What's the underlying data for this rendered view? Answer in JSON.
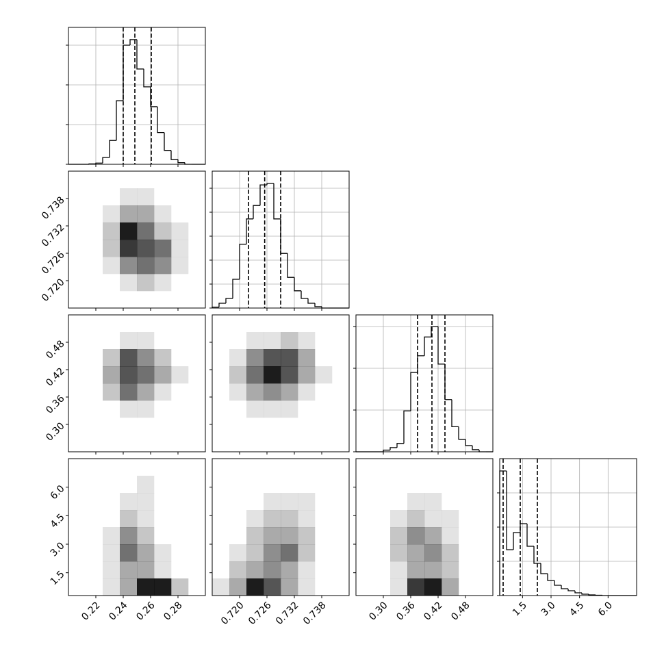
{
  "chart_data": {
    "type": "corner",
    "grid": true,
    "params": [
      {
        "xlim": [
          0.2,
          0.3
        ],
        "ticks": [
          0.22,
          0.24,
          0.26,
          0.28
        ]
      },
      {
        "xlim": [
          0.714,
          0.744
        ],
        "ticks": [
          {
            "value": 0.72,
            "label": "0.720"
          },
          0.726,
          0.732,
          0.738
        ]
      },
      {
        "xlim": [
          0.24,
          0.54
        ],
        "ticks": [
          {
            "value": 0.3,
            "label": "0.30"
          },
          0.36,
          0.42,
          0.48
        ]
      },
      {
        "xlim": [
          0.3,
          7.5
        ],
        "ticks": [
          1.5,
          {
            "value": 3,
            "label": "3.0"
          },
          4.5,
          {
            "value": 6,
            "label": "6.0"
          }
        ]
      }
    ],
    "histograms": [
      {
        "bins": [
          0.2,
          0.205,
          0.21,
          0.215,
          0.22,
          0.225,
          0.23,
          0.235,
          0.24,
          0.245,
          0.25,
          0.255,
          0.26,
          0.265,
          0.27,
          0.275,
          0.28,
          0.285,
          0.29,
          0.295,
          0.3
        ],
        "values": [
          0,
          0,
          0,
          10,
          30,
          170,
          600,
          1600,
          3000,
          3140,
          2400,
          1950,
          1450,
          800,
          350,
          120,
          40,
          0,
          0,
          0
        ],
        "ylim": [
          0,
          3448
        ],
        "yticks": [
          0,
          1000,
          2000,
          3000
        ],
        "quantiles": [
          0.24,
          0.2485,
          0.2605
        ]
      },
      {
        "bins": [
          0.714,
          0.7155,
          0.717,
          0.7185,
          0.72,
          0.7215,
          0.723,
          0.7245,
          0.726,
          0.7275,
          0.729,
          0.7305,
          0.732,
          0.7335,
          0.735,
          0.7365,
          0.738,
          0.7395,
          0.741,
          0.7425,
          0.744
        ],
        "values": [
          20,
          100,
          200,
          600,
          1330,
          1860,
          2140,
          2570,
          2600,
          1860,
          1140,
          640,
          360,
          200,
          100,
          30,
          0,
          0,
          0,
          0
        ],
        "ylim": [
          0,
          2857
        ],
        "yticks": [
          0,
          500,
          1000,
          1500,
          2000,
          2500
        ],
        "quantiles": [
          0.72195,
          0.7255,
          0.729
        ]
      },
      {
        "bins": [
          0.24,
          0.255,
          0.27,
          0.285,
          0.3,
          0.315,
          0.33,
          0.345,
          0.36,
          0.375,
          0.39,
          0.405,
          0.42,
          0.435,
          0.45,
          0.465,
          0.48,
          0.495,
          0.51,
          0.525,
          0.54
        ],
        "values": [
          0,
          0,
          0,
          0,
          40,
          100,
          200,
          980,
          1900,
          2300,
          2750,
          3000,
          2100,
          1250,
          600,
          300,
          150,
          50,
          0,
          0
        ],
        "ylim": [
          0,
          3279
        ],
        "yticks": [
          0,
          1000,
          2000,
          3000
        ],
        "quantiles": [
          0.375,
          0.4065,
          0.435
        ]
      },
      {
        "bins": [
          0.3,
          0.66,
          1.02,
          1.38,
          1.74,
          2.1,
          2.46,
          2.82,
          3.18,
          3.54,
          3.9,
          4.26,
          4.62,
          4.98,
          5.34,
          5.7,
          6.06,
          6.42,
          6.78,
          7.14,
          7.5
        ],
        "values": [
          1820,
          670,
          920,
          1050,
          720,
          470,
          320,
          220,
          150,
          100,
          70,
          40,
          20,
          10,
          5,
          0,
          0,
          0,
          0,
          0
        ],
        "ylim": [
          0,
          2000
        ],
        "yticks": [
          0,
          500,
          1000,
          1500
        ],
        "quantiles": [
          0.48,
          1.38,
          2.28
        ]
      }
    ],
    "density": [
      [
        [
          [
            0,
            0,
            0,
            0,
            0,
            0,
            0,
            0
          ],
          [
            0,
            0,
            0,
            1,
            1,
            0,
            0,
            0
          ],
          [
            0,
            0,
            1,
            3,
            3,
            1,
            0,
            0
          ],
          [
            0,
            0,
            2,
            8,
            5,
            2,
            1,
            0
          ],
          [
            0,
            0,
            2,
            7,
            6,
            5,
            1,
            0
          ],
          [
            0,
            0,
            1,
            4,
            5,
            4,
            1,
            0
          ],
          [
            0,
            0,
            0,
            1,
            2,
            1,
            0,
            0
          ],
          [
            0,
            0,
            0,
            0,
            0,
            0,
            0,
            0
          ]
        ]
      ],
      [
        [
          [
            0,
            0,
            0,
            0,
            0,
            0,
            0,
            0
          ],
          [
            0,
            0,
            0,
            1,
            1,
            0,
            0,
            0
          ],
          [
            0,
            0,
            2,
            6,
            4,
            2,
            0,
            0
          ],
          [
            0,
            0,
            3,
            6,
            5,
            3,
            1,
            0
          ],
          [
            0,
            0,
            2,
            5,
            3,
            1,
            0,
            0
          ],
          [
            0,
            0,
            0,
            1,
            1,
            0,
            0,
            0
          ],
          [
            0,
            0,
            0,
            0,
            0,
            0,
            0,
            0
          ],
          [
            0,
            0,
            0,
            0,
            0,
            0,
            0,
            0
          ]
        ],
        [
          [
            0,
            0,
            0,
            0,
            0,
            0,
            0,
            0
          ],
          [
            0,
            0,
            1,
            1,
            2,
            1,
            0,
            0
          ],
          [
            0,
            1,
            4,
            6,
            6,
            3,
            0,
            0
          ],
          [
            0,
            2,
            5,
            8,
            6,
            3,
            1,
            0
          ],
          [
            0,
            1,
            3,
            4,
            3,
            1,
            0,
            0
          ],
          [
            0,
            0,
            1,
            1,
            1,
            0,
            0,
            0
          ],
          [
            0,
            0,
            0,
            0,
            0,
            0,
            0,
            0
          ],
          [
            0,
            0,
            0,
            0,
            0,
            0,
            0,
            0
          ]
        ]
      ],
      [
        [
          [
            0,
            0,
            0,
            0,
            0,
            0,
            0,
            0
          ],
          [
            0,
            0,
            0,
            0,
            1,
            0,
            0,
            0
          ],
          [
            0,
            0,
            0,
            1,
            1,
            0,
            0,
            0
          ],
          [
            0,
            0,
            0,
            2,
            1,
            0,
            0,
            0
          ],
          [
            0,
            0,
            1,
            4,
            2,
            0,
            0,
            0
          ],
          [
            0,
            0,
            1,
            5,
            3,
            1,
            0,
            0
          ],
          [
            0,
            0,
            1,
            3,
            3,
            1,
            0,
            0
          ],
          [
            0,
            0,
            1,
            3,
            8,
            8,
            2,
            0
          ]
        ],
        [
          [
            0,
            0,
            0,
            0,
            0,
            0,
            0,
            0
          ],
          [
            0,
            0,
            0,
            0,
            0,
            0,
            0,
            0
          ],
          [
            0,
            0,
            0,
            1,
            1,
            1,
            0,
            0
          ],
          [
            0,
            0,
            1,
            2,
            2,
            1,
            0,
            0
          ],
          [
            0,
            0,
            2,
            3,
            3,
            2,
            0,
            0
          ],
          [
            0,
            1,
            2,
            4,
            5,
            2,
            0,
            0
          ],
          [
            0,
            2,
            3,
            4,
            3,
            1,
            0,
            0
          ],
          [
            1,
            3,
            8,
            6,
            3,
            1,
            0,
            0
          ]
        ],
        [
          [
            0,
            0,
            0,
            0,
            0,
            0,
            0,
            0
          ],
          [
            0,
            0,
            0,
            0,
            0,
            0,
            0,
            0
          ],
          [
            0,
            0,
            0,
            1,
            1,
            0,
            0,
            0
          ],
          [
            0,
            0,
            1,
            2,
            1,
            1,
            0,
            0
          ],
          [
            0,
            0,
            2,
            4,
            3,
            1,
            0,
            0
          ],
          [
            0,
            0,
            2,
            3,
            4,
            2,
            0,
            0
          ],
          [
            0,
            0,
            1,
            3,
            3,
            2,
            0,
            0
          ],
          [
            0,
            0,
            1,
            7,
            8,
            3,
            0,
            0
          ]
        ]
      ]
    ]
  }
}
